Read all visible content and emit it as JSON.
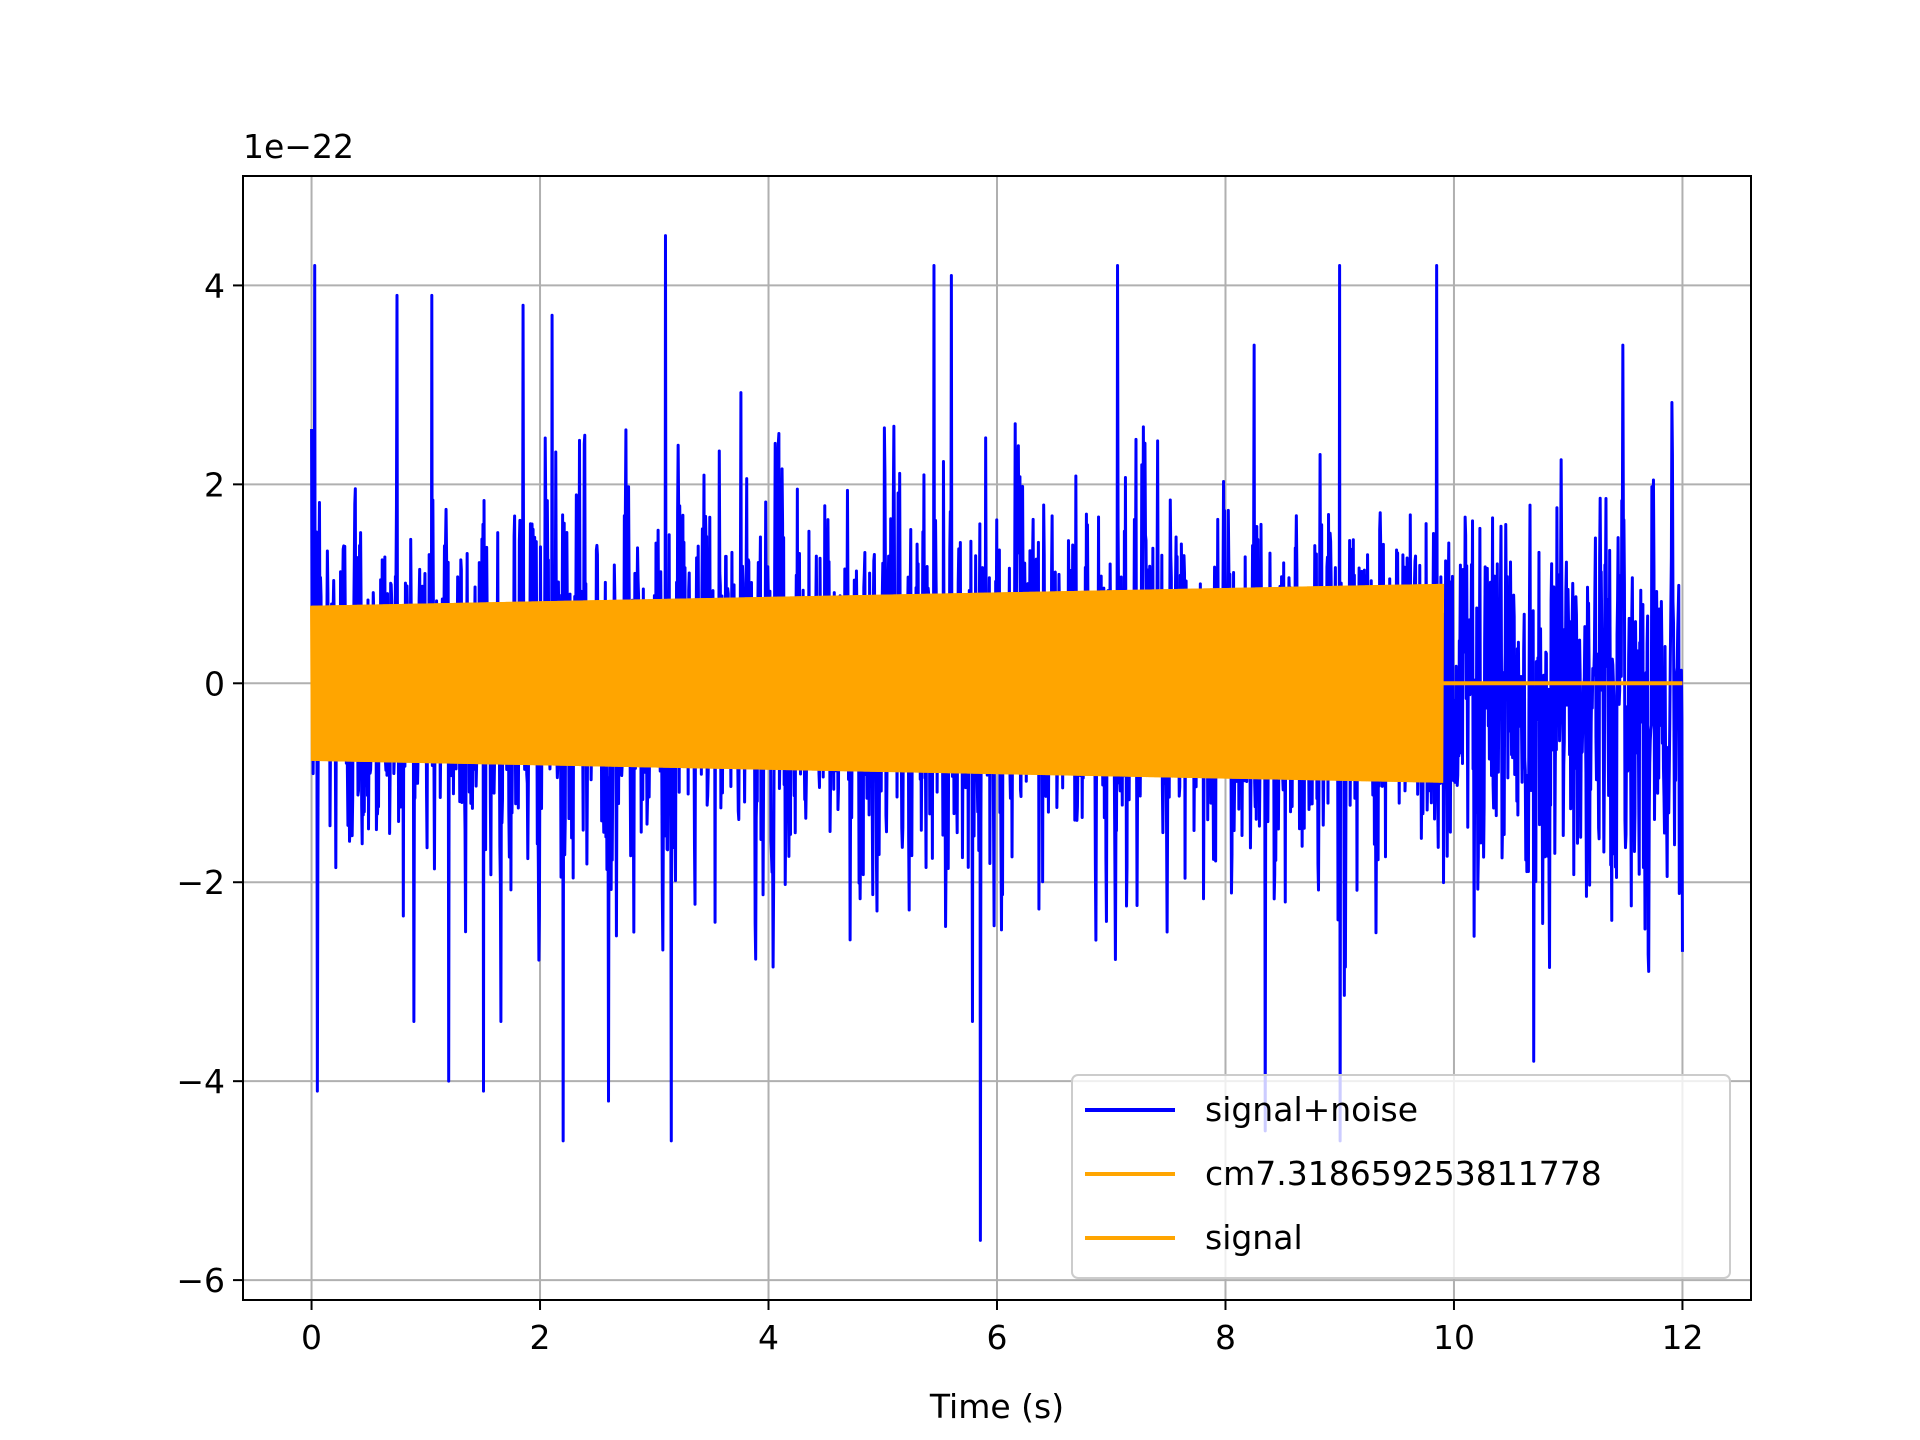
{
  "chart_data": {
    "type": "line",
    "xlabel": "Time (s)",
    "ylabel": "",
    "y_offset_text": "1e−22",
    "xlim": [
      -0.6,
      12.6
    ],
    "ylim": [
      -6.2,
      5.1
    ],
    "x_ticks": [
      0,
      2,
      4,
      6,
      8,
      10,
      12
    ],
    "y_ticks": [
      -6,
      -4,
      -2,
      0,
      2,
      4
    ],
    "x_tick_labels": [
      "0",
      "2",
      "4",
      "6",
      "8",
      "10",
      "12"
    ],
    "y_tick_labels": [
      "−6",
      "−4",
      "−2",
      "0",
      "2",
      "4"
    ],
    "grid": true,
    "legend_position": "lower-right",
    "series": [
      {
        "name": "signal+noise",
        "color": "#0000ff",
        "description_values": {
          "x_range": [
            0,
            12
          ],
          "typical_envelope": [
            -3.0,
            3.0
          ],
          "max": 4.5,
          "min": -5.6
        },
        "peaks": [
          {
            "x": 0.03,
            "y": 4.2
          },
          {
            "x": 0.05,
            "y": -4.1
          },
          {
            "x": 0.75,
            "y": 3.9
          },
          {
            "x": 1.05,
            "y": 3.9
          },
          {
            "x": 1.2,
            "y": -4.0
          },
          {
            "x": 1.5,
            "y": -4.1
          },
          {
            "x": 1.85,
            "y": 3.8
          },
          {
            "x": 2.1,
            "y": 3.7
          },
          {
            "x": 2.2,
            "y": -4.6
          },
          {
            "x": 2.6,
            "y": -4.2
          },
          {
            "x": 3.1,
            "y": 4.5
          },
          {
            "x": 3.15,
            "y": -4.6
          },
          {
            "x": 5.45,
            "y": 4.2
          },
          {
            "x": 5.6,
            "y": 4.1
          },
          {
            "x": 5.85,
            "y": -5.6
          },
          {
            "x": 7.05,
            "y": 4.2
          },
          {
            "x": 8.35,
            "y": -4.5
          },
          {
            "x": 9.0,
            "y": 4.2
          },
          {
            "x": 9.0,
            "y": -4.6
          },
          {
            "x": 9.85,
            "y": 4.2
          },
          {
            "x": 10.7,
            "y": -3.8
          },
          {
            "x": 12.0,
            "y": 2.7
          },
          {
            "x": 12.0,
            "y": -2.7
          }
        ]
      },
      {
        "name": "cm7.318659253811778",
        "color": "#ffa500",
        "description_values": {
          "x_range": [
            0,
            9.9
          ],
          "amplitude_start": 0.78,
          "amplitude_end": 1.0,
          "after_end": 0
        }
      },
      {
        "name": "signal",
        "color": "#ffa500",
        "description_values": {
          "x_range": [
            9.9,
            12
          ],
          "value": 0
        }
      }
    ]
  },
  "colors": {
    "grid": "#b0b0b0",
    "axes": "#000000",
    "legend_border": "#cccccc"
  }
}
